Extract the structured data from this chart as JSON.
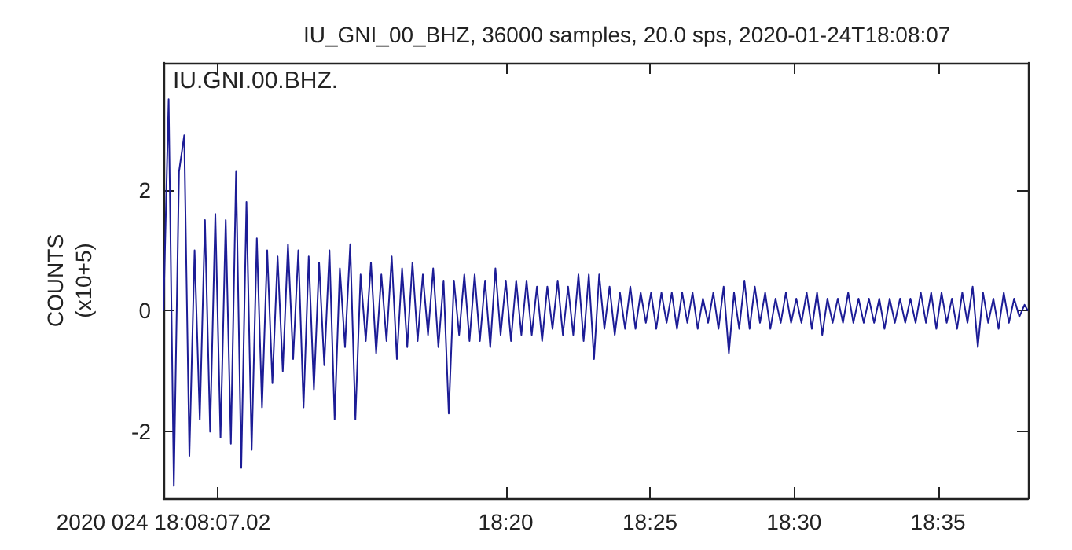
{
  "chart_data": {
    "type": "line",
    "title": "IU_GNI_00_BHZ, 36000 samples, 20.0 sps, 2020-01-24T18:08:07",
    "ylabel": "COUNTS\n(x10+5)",
    "annotations": [
      "IU.GNI.00.BHZ."
    ],
    "xlim": [
      18.1353,
      18.6353
    ],
    "xticks": [
      {
        "value": 18.1353,
        "label": "2020 024 18:08:07.02"
      },
      {
        "value": 18.1667,
        "label": null
      },
      {
        "value": 18.3333,
        "label": "18:20"
      },
      {
        "value": 18.4167,
        "label": "18:25"
      },
      {
        "value": 18.5,
        "label": "18:30"
      },
      {
        "value": 18.5833,
        "label": "18:35"
      }
    ],
    "ylim": [
      -3.1,
      4.1
    ],
    "yticks": [
      -2,
      0,
      2
    ],
    "grid": false,
    "marker": "none",
    "line_style": "solid",
    "series": [
      {
        "color": "#1c1c96",
        "x": [
          18.1353,
          18.1383,
          18.1413,
          18.1443,
          18.1473,
          18.1503,
          18.1533,
          18.1563,
          18.1593,
          18.1623,
          18.1653,
          18.1683,
          18.1713,
          18.1743,
          18.1773,
          18.1803,
          18.1833,
          18.1863,
          18.1893,
          18.1923,
          18.1953,
          18.1983,
          18.2013,
          18.2043,
          18.2073,
          18.2103,
          18.2133,
          18.2163,
          18.2193,
          18.2223,
          18.2253,
          18.2283,
          18.2313,
          18.2343,
          18.2373,
          18.2403,
          18.2433,
          18.2463,
          18.2493,
          18.2523,
          18.2553,
          18.2583,
          18.2613,
          18.2643,
          18.2673,
          18.2703,
          18.2733,
          18.2763,
          18.2793,
          18.2823,
          18.2853,
          18.2883,
          18.2913,
          18.2943,
          18.2973,
          18.3003,
          18.3033,
          18.3063,
          18.3093,
          18.3123,
          18.3153,
          18.3183,
          18.3213,
          18.3243,
          18.3273,
          18.3303,
          18.3333,
          18.3363,
          18.3393,
          18.3423,
          18.3453,
          18.3483,
          18.3513,
          18.3543,
          18.3573,
          18.3603,
          18.3633,
          18.3663,
          18.3693,
          18.3723,
          18.3753,
          18.3783,
          18.3813,
          18.3843,
          18.3873,
          18.3903,
          18.3933,
          18.3963,
          18.3993,
          18.4023,
          18.4053,
          18.4083,
          18.4113,
          18.4143,
          18.4173,
          18.4203,
          18.4233,
          18.4263,
          18.4293,
          18.4323,
          18.4353,
          18.4383,
          18.4413,
          18.4443,
          18.4473,
          18.4503,
          18.4533,
          18.4563,
          18.4593,
          18.4623,
          18.4653,
          18.4683,
          18.4713,
          18.4743,
          18.4773,
          18.4803,
          18.4833,
          18.4863,
          18.4893,
          18.4923,
          18.4953,
          18.4983,
          18.5013,
          18.5043,
          18.5073,
          18.5103,
          18.5133,
          18.5163,
          18.5193,
          18.5223,
          18.5253,
          18.5283,
          18.5313,
          18.5343,
          18.5373,
          18.5403,
          18.5433,
          18.5463,
          18.5493,
          18.5523,
          18.5553,
          18.5583,
          18.5613,
          18.5643,
          18.5673,
          18.5703,
          18.5733,
          18.5763,
          18.5793,
          18.5823,
          18.5853,
          18.5883,
          18.5913,
          18.5943,
          18.5973,
          18.6003,
          18.6033,
          18.6063,
          18.6093,
          18.6123,
          18.6153,
          18.6183,
          18.6213,
          18.6243,
          18.6273,
          18.6303,
          18.6333,
          18.6353
        ],
        "values": [
          0,
          3.5,
          -2.9,
          2.3,
          2.9,
          -2.4,
          1.0,
          -1.8,
          1.5,
          -2.0,
          1.6,
          -2.1,
          1.5,
          -2.2,
          2.3,
          -2.6,
          1.8,
          -2.3,
          1.2,
          -1.6,
          1.0,
          -1.2,
          0.9,
          -1.0,
          1.1,
          -0.8,
          1.0,
          -1.6,
          0.9,
          -1.3,
          0.8,
          -0.9,
          1.0,
          -1.8,
          0.7,
          -0.6,
          1.1,
          -1.8,
          0.6,
          -0.5,
          0.8,
          -0.7,
          0.6,
          -0.5,
          0.9,
          -0.8,
          0.7,
          -0.6,
          0.8,
          -0.5,
          0.6,
          -0.4,
          0.7,
          -0.6,
          0.5,
          -1.7,
          0.5,
          -0.4,
          0.6,
          -0.5,
          0.6,
          -0.5,
          0.5,
          -0.6,
          0.7,
          -0.4,
          0.5,
          -0.5,
          0.5,
          -0.4,
          0.5,
          -0.4,
          0.4,
          -0.5,
          0.4,
          -0.3,
          0.5,
          -0.4,
          0.4,
          -0.4,
          0.6,
          -0.5,
          0.6,
          -0.8,
          0.6,
          -0.3,
          0.4,
          -0.4,
          0.3,
          -0.3,
          0.4,
          -0.3,
          0.3,
          -0.2,
          0.3,
          -0.3,
          0.3,
          -0.2,
          0.3,
          -0.3,
          0.3,
          -0.2,
          0.3,
          -0.3,
          0.2,
          -0.2,
          0.3,
          -0.3,
          0.4,
          -0.7,
          0.3,
          -0.3,
          0.5,
          -0.3,
          0.4,
          -0.2,
          0.3,
          -0.3,
          0.2,
          -0.2,
          0.3,
          -0.2,
          0.2,
          -0.2,
          0.3,
          -0.3,
          0.3,
          -0.4,
          0.2,
          -0.2,
          0.2,
          -0.2,
          0.3,
          -0.2,
          0.2,
          -0.2,
          0.2,
          -0.2,
          0.2,
          -0.3,
          0.2,
          -0.2,
          0.2,
          -0.2,
          0.2,
          -0.2,
          0.3,
          -0.2,
          0.3,
          -0.3,
          0.3,
          -0.2,
          0.2,
          -0.3,
          0.3,
          -0.2,
          0.4,
          -0.6,
          0.3,
          -0.2,
          0.2,
          -0.3,
          0.3,
          -0.2,
          0.2,
          -0.1,
          0.1,
          0
        ]
      }
    ]
  }
}
